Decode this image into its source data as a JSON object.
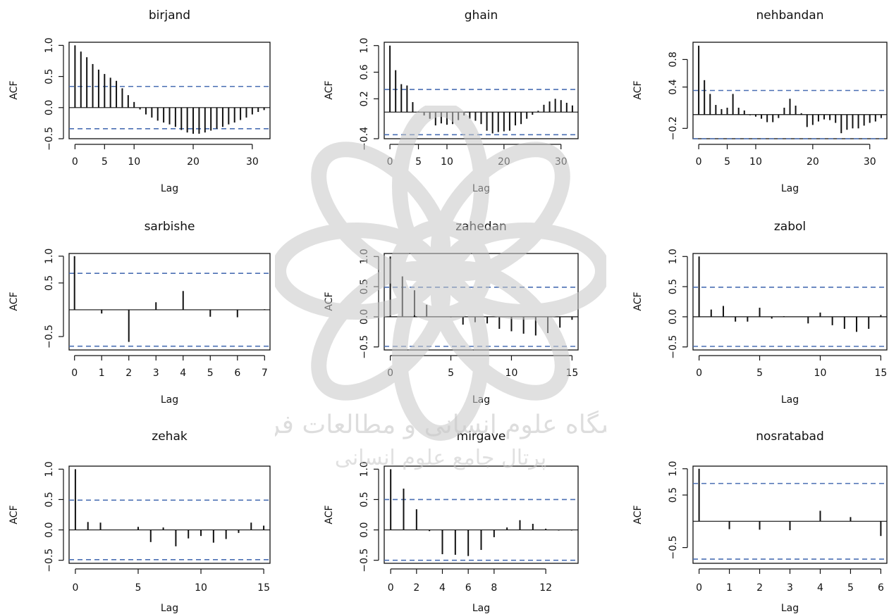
{
  "figure": {
    "background": "#ffffff"
  },
  "colors": {
    "bar": "#111111",
    "conf_line": "#4a6fb3",
    "watermark": "#c8c8c8"
  },
  "watermark": {
    "icon": "arabesque-star-emblem-icon",
    "text_line_1": "پژوهشگاه علوم انسانی و مطالعات فرهنگی",
    "text_line_2": "پرتال جامع علوم انسانی"
  },
  "chart_data": [
    {
      "type": "bar",
      "title": "birjand",
      "xlabel": "Lag",
      "ylabel": "ACF",
      "xlim": [
        -1,
        33
      ],
      "ylim": [
        -0.5,
        1.05
      ],
      "xticks": [
        0,
        5,
        10,
        20,
        30
      ],
      "yticks": [
        -0.5,
        0.0,
        0.5,
        1.0
      ],
      "ytick_labels": [
        "−0.5",
        "0.0",
        "0.5",
        "1.0"
      ],
      "conf": 0.34,
      "lags": [
        0,
        1,
        2,
        3,
        4,
        5,
        6,
        7,
        8,
        9,
        10,
        11,
        12,
        13,
        14,
        15,
        16,
        17,
        18,
        19,
        20,
        21,
        22,
        23,
        24,
        25,
        26,
        27,
        28,
        29,
        30,
        31,
        32
      ],
      "values": [
        1.0,
        0.9,
        0.81,
        0.7,
        0.61,
        0.54,
        0.48,
        0.43,
        0.31,
        0.2,
        0.09,
        -0.03,
        -0.11,
        -0.16,
        -0.21,
        -0.24,
        -0.27,
        -0.31,
        -0.36,
        -0.4,
        -0.42,
        -0.42,
        -0.4,
        -0.37,
        -0.34,
        -0.31,
        -0.27,
        -0.24,
        -0.2,
        -0.16,
        -0.11,
        -0.07,
        -0.04
      ]
    },
    {
      "type": "bar",
      "title": "ghain",
      "xlabel": "Lag",
      "ylabel": "ACF",
      "xlim": [
        -1,
        33
      ],
      "ylim": [
        -0.4,
        1.05
      ],
      "xticks": [
        0,
        5,
        10,
        20,
        30
      ],
      "yticks": [
        -0.4,
        0.2,
        0.6,
        1.0
      ],
      "ytick_labels": [
        "−0.4",
        "0.2",
        "0.6",
        "1.0"
      ],
      "conf": 0.34,
      "lags": [
        0,
        1,
        2,
        3,
        4,
        5,
        6,
        7,
        8,
        9,
        10,
        11,
        12,
        13,
        14,
        15,
        16,
        17,
        18,
        19,
        20,
        21,
        22,
        23,
        24,
        25,
        26,
        27,
        28,
        29,
        30,
        31,
        32
      ],
      "values": [
        1.0,
        0.63,
        0.42,
        0.4,
        0.15,
        0.01,
        -0.05,
        -0.1,
        -0.2,
        -0.17,
        -0.19,
        -0.18,
        -0.12,
        -0.05,
        -0.1,
        -0.13,
        -0.18,
        -0.28,
        -0.32,
        -0.3,
        -0.29,
        -0.28,
        -0.2,
        -0.18,
        -0.1,
        -0.04,
        0.02,
        0.11,
        0.16,
        0.2,
        0.18,
        0.14,
        0.1
      ]
    },
    {
      "type": "bar",
      "title": "nehbandan",
      "xlabel": "Lag",
      "ylabel": "ACF",
      "xlim": [
        -1,
        33
      ],
      "ylim": [
        -0.35,
        1.05
      ],
      "xticks": [
        0,
        5,
        10,
        20,
        30
      ],
      "yticks": [
        -0.2,
        0.4,
        0.8
      ],
      "ytick_labels": [
        "−0.2",
        "0.4",
        "0.8"
      ],
      "conf": 0.35,
      "lags": [
        0,
        1,
        2,
        3,
        4,
        5,
        6,
        7,
        8,
        9,
        10,
        11,
        12,
        13,
        14,
        15,
        16,
        17,
        18,
        19,
        20,
        21,
        22,
        23,
        24,
        25,
        26,
        27,
        28,
        29,
        30,
        31,
        32
      ],
      "values": [
        1.0,
        0.5,
        0.3,
        0.14,
        0.08,
        0.1,
        0.3,
        0.1,
        0.06,
        -0.01,
        -0.03,
        -0.06,
        -0.11,
        -0.11,
        -0.05,
        0.1,
        0.23,
        0.13,
        0.02,
        -0.18,
        -0.15,
        -0.1,
        -0.07,
        -0.08,
        -0.12,
        -0.27,
        -0.22,
        -0.2,
        -0.2,
        -0.16,
        -0.12,
        -0.1,
        -0.05
      ]
    },
    {
      "type": "bar",
      "title": "sarbishe",
      "xlabel": "Lag",
      "ylabel": "ACF",
      "xlim": [
        -0.2,
        7.2
      ],
      "ylim": [
        -0.75,
        1.05
      ],
      "xticks": [
        0,
        1,
        2,
        3,
        4,
        5,
        6,
        7
      ],
      "yticks": [
        -0.5,
        0.5,
        1.0
      ],
      "ytick_labels": [
        "−0.5",
        "0.5",
        "1.0"
      ],
      "conf": 0.68,
      "lags": [
        0,
        1,
        2,
        3,
        4,
        5,
        6,
        7
      ],
      "values": [
        1.0,
        -0.07,
        -0.6,
        0.14,
        0.35,
        -0.13,
        -0.14,
        0.01
      ]
    },
    {
      "type": "bar",
      "title": "zahedan",
      "xlabel": "Lag",
      "ylabel": "ACF",
      "xlim": [
        -0.5,
        15.5
      ],
      "ylim": [
        -0.55,
        1.05
      ],
      "xticks": [
        0,
        5,
        10,
        15
      ],
      "yticks": [
        -0.5,
        0.0,
        0.5,
        1.0
      ],
      "ytick_labels": [
        "−0.5",
        "0.0",
        "0.5",
        "1.0"
      ],
      "conf": 0.49,
      "lags": [
        0,
        1,
        2,
        3,
        4,
        5,
        6,
        7,
        8,
        9,
        10,
        11,
        12,
        13,
        14,
        15
      ],
      "values": [
        1.0,
        0.67,
        0.44,
        0.2,
        0.0,
        -0.01,
        -0.13,
        -0.09,
        -0.11,
        -0.2,
        -0.24,
        -0.28,
        -0.31,
        -0.27,
        -0.18,
        -0.05
      ]
    },
    {
      "type": "bar",
      "title": "zabol",
      "xlabel": "Lag",
      "ylabel": "ACF",
      "xlim": [
        -0.5,
        15.5
      ],
      "ylim": [
        -0.55,
        1.05
      ],
      "xticks": [
        0,
        5,
        10,
        15
      ],
      "yticks": [
        -0.5,
        0.0,
        0.5,
        1.0
      ],
      "ytick_labels": [
        "−0.5",
        "0.0",
        "0.5",
        "1.0"
      ],
      "conf": 0.49,
      "lags": [
        0,
        1,
        2,
        3,
        4,
        5,
        6,
        7,
        8,
        9,
        10,
        11,
        12,
        13,
        14,
        15
      ],
      "values": [
        1.0,
        0.12,
        0.18,
        -0.08,
        -0.08,
        0.15,
        -0.03,
        0.01,
        0.0,
        -0.11,
        0.07,
        -0.14,
        -0.2,
        -0.25,
        -0.2,
        0.03
      ]
    },
    {
      "type": "bar",
      "title": "zehak",
      "xlabel": "Lag",
      "ylabel": "ACF",
      "xlim": [
        -0.5,
        15.5
      ],
      "ylim": [
        -0.55,
        1.05
      ],
      "xticks": [
        0,
        5,
        10,
        15
      ],
      "yticks": [
        -0.5,
        0.0,
        0.5,
        1.0
      ],
      "ytick_labels": [
        "−0.5",
        "0.0",
        "0.5",
        "1.0"
      ],
      "conf": 0.49,
      "lags": [
        0,
        1,
        2,
        3,
        4,
        5,
        6,
        7,
        8,
        9,
        10,
        11,
        12,
        13,
        14,
        15
      ],
      "values": [
        1.0,
        0.13,
        0.12,
        0.0,
        0.0,
        0.05,
        -0.2,
        0.04,
        -0.27,
        -0.14,
        -0.1,
        -0.21,
        -0.15,
        -0.05,
        0.12,
        0.07
      ]
    },
    {
      "type": "bar",
      "title": "mirgave",
      "xlabel": "Lag",
      "ylabel": "ACF",
      "xlim": [
        -0.5,
        14.5
      ],
      "ylim": [
        -0.55,
        1.05
      ],
      "xticks": [
        0,
        2,
        4,
        6,
        8,
        12
      ],
      "yticks": [
        -0.5,
        0.0,
        0.5,
        1.0
      ],
      "ytick_labels": [
        "−0.5",
        "0.0",
        "0.5",
        "1.0"
      ],
      "conf": 0.5,
      "lags": [
        0,
        1,
        2,
        3,
        4,
        5,
        6,
        7,
        8,
        9,
        10,
        11,
        12,
        13,
        14
      ],
      "values": [
        1.0,
        0.68,
        0.34,
        -0.02,
        -0.4,
        -0.41,
        -0.43,
        -0.33,
        -0.12,
        0.04,
        0.16,
        0.1,
        0.02,
        -0.01,
        -0.01
      ]
    },
    {
      "type": "bar",
      "title": "nosratabad",
      "xlabel": "Lag",
      "ylabel": "ACF",
      "xlim": [
        -0.2,
        6.2
      ],
      "ylim": [
        -0.8,
        1.05
      ],
      "xticks": [
        0,
        1,
        2,
        3,
        4,
        5,
        6
      ],
      "yticks": [
        -0.5,
        0.5,
        1.0
      ],
      "ytick_labels": [
        "−0.5",
        "0.5",
        "1.0"
      ],
      "conf": 0.72,
      "lags": [
        0,
        1,
        2,
        3,
        4,
        5,
        6
      ],
      "values": [
        1.0,
        -0.15,
        -0.16,
        -0.17,
        0.2,
        0.08,
        -0.28
      ]
    }
  ]
}
